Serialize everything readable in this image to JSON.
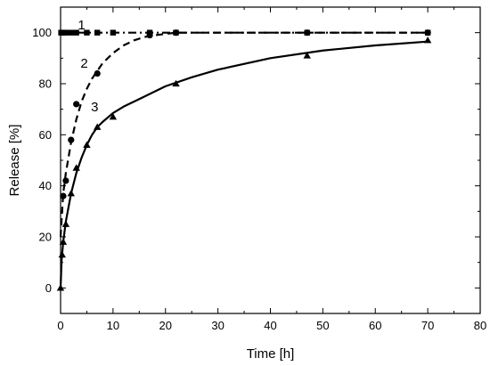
{
  "chart_data": {
    "type": "line",
    "title": "",
    "xlabel": "Time [h]",
    "ylabel": "Release [%]",
    "xlim": [
      0,
      80
    ],
    "ylim": [
      -10,
      110
    ],
    "x_ticks": [
      0,
      10,
      20,
      30,
      40,
      50,
      60,
      70,
      80
    ],
    "y_ticks": [
      0,
      20,
      40,
      60,
      80,
      100
    ],
    "grid": false,
    "legend": "none",
    "series": [
      {
        "name": "1",
        "marker": "square",
        "line_style": "dash-dot",
        "x": [
          0.1,
          0.3,
          0.5,
          1,
          2,
          3,
          5,
          7,
          10,
          17,
          22,
          47,
          70
        ],
        "y": [
          100,
          100,
          100,
          100,
          100,
          100,
          100,
          100,
          100,
          100,
          100,
          100,
          100
        ],
        "fit_x": [
          0,
          5,
          10,
          20,
          30,
          40,
          50,
          60,
          70
        ],
        "fit_y": [
          100,
          100,
          100,
          100,
          100,
          100,
          100,
          100,
          100
        ]
      },
      {
        "name": "2",
        "marker": "circle",
        "line_style": "dashed",
        "x": [
          0.5,
          1,
          2,
          3,
          7,
          17,
          22,
          47,
          70
        ],
        "y": [
          36,
          42,
          58,
          72,
          84,
          99,
          100,
          100,
          100
        ],
        "fit_x": [
          0,
          0.5,
          1,
          2,
          3,
          4,
          5,
          6,
          7,
          8,
          10,
          12,
          14,
          16,
          18,
          20,
          22,
          30,
          40,
          50,
          60,
          70
        ],
        "fit_y": [
          20,
          37,
          45,
          57,
          66,
          73,
          78,
          82,
          85,
          88,
          92,
          95,
          97,
          98.3,
          99,
          99.5,
          100,
          100,
          100,
          100,
          100,
          100
        ]
      },
      {
        "name": "3",
        "marker": "triangle",
        "line_style": "solid",
        "x": [
          0,
          0.3,
          0.5,
          1,
          2,
          3,
          5,
          7,
          10,
          22,
          47,
          70
        ],
        "y": [
          0,
          13,
          18,
          25,
          37,
          47,
          56,
          63,
          67,
          80,
          91,
          97
        ],
        "fit_x": [
          0,
          0.2,
          0.5,
          1,
          2,
          3,
          4,
          5,
          6,
          7,
          8,
          10,
          12,
          15,
          20,
          25,
          30,
          40,
          50,
          60,
          70
        ],
        "fit_y": [
          0,
          11,
          18,
          26,
          37,
          45,
          51,
          56,
          60,
          63,
          65,
          68.5,
          71,
          74,
          79,
          82.5,
          85.5,
          90,
          93,
          95,
          96.5
        ]
      }
    ],
    "curve_labels": [
      {
        "text": "1",
        "series": "1",
        "x": 4,
        "y": 103
      },
      {
        "text": "2",
        "series": "2",
        "x": 4.5,
        "y": 88
      },
      {
        "text": "3",
        "series": "3",
        "x": 6.5,
        "y": 71
      }
    ]
  }
}
